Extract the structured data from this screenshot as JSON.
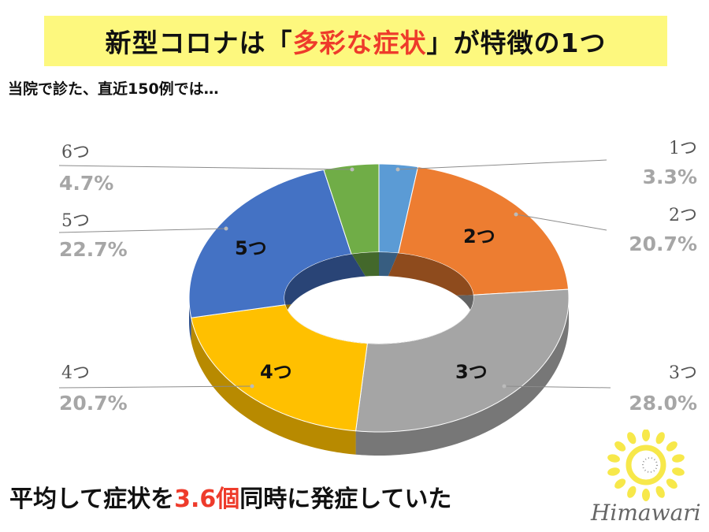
{
  "header": {
    "title_pre": "新型コロナは「",
    "title_red": "多彩な症状",
    "title_post": "」が特徴の1つ",
    "subtitle": "当院で診た、直近150例では…"
  },
  "chart_data": {
    "type": "pie",
    "style": "3d-donut",
    "categories": [
      "1つ",
      "2つ",
      "3つ",
      "4つ",
      "5つ",
      "6つ"
    ],
    "values": [
      3.3,
      20.7,
      28.0,
      20.7,
      22.7,
      4.7
    ],
    "data_labels": [
      "3.3%",
      "20.7%",
      "28.0%",
      "20.7%",
      "22.7%",
      "4.7%"
    ],
    "inner_labels": [
      "",
      "2つ",
      "3つ",
      "4つ",
      "5つ",
      ""
    ],
    "colors": [
      "#5b9bd5",
      "#ed7d31",
      "#a5a5a5",
      "#ffc000",
      "#4472c4",
      "#70ad47"
    ],
    "start_angle": "12 o'clock",
    "direction": "clockwise"
  },
  "summary": {
    "pre": "平均して症状を",
    "red": "3.6個",
    "post": "同時に発症していた"
  },
  "logo": {
    "text": "Himawari"
  }
}
